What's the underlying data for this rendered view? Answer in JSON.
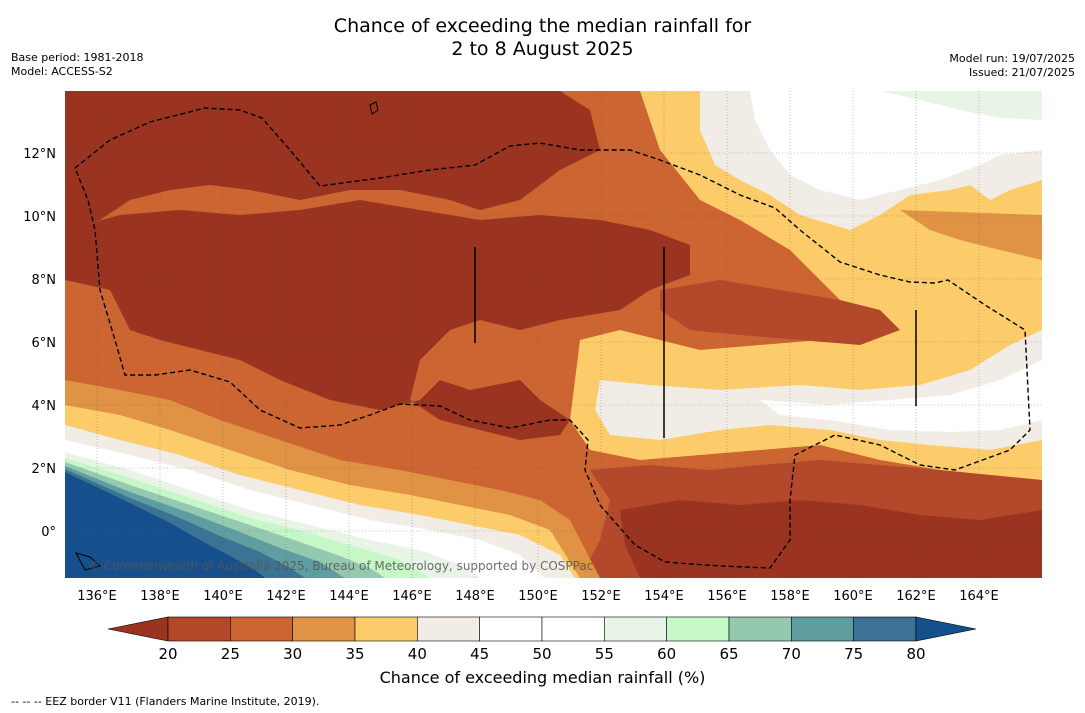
{
  "title_line1": "Chance of exceeding the median rainfall for",
  "title_line2": "2 to 8 August 2025",
  "base_period": "Base period: 1981-2018",
  "model": "Model: ACCESS-S2",
  "model_run": "Model run: 19/07/2025",
  "issued": "Issued: 21/07/2025",
  "credit": "© Commonwealth of Australia 2025, Bureau of Meteorology, supported by COSPPac",
  "lon_ticks": [
    "136°E",
    "138°E",
    "140°E",
    "142°E",
    "144°E",
    "146°E",
    "148°E",
    "150°E",
    "152°E",
    "154°E",
    "156°E",
    "158°E",
    "160°E",
    "162°E",
    "164°E"
  ],
  "lat_ticks": [
    "12°N",
    "10°N",
    "8°N",
    "6°N",
    "4°N",
    "2°N",
    "0°"
  ],
  "colorbar": {
    "label": "Chance of exceeding median rainfall (%)",
    "ticks": [
      "20",
      "25",
      "30",
      "35",
      "40",
      "45",
      "50",
      "55",
      "60",
      "65",
      "70",
      "75",
      "80"
    ],
    "colors": [
      "#9a3420",
      "#b4482a",
      "#cc6532",
      "#e09245",
      "#fccc6a",
      "#f1ede6",
      "#ffffff",
      "#ffffff",
      "#e8f5e6",
      "#c6f7c6",
      "#94c9b0",
      "#5e9ea0",
      "#3c7293",
      "#154f8c"
    ]
  },
  "footer": "--  --  -- EEZ border V11 (Flanders Marine Institute, 2019)."
}
